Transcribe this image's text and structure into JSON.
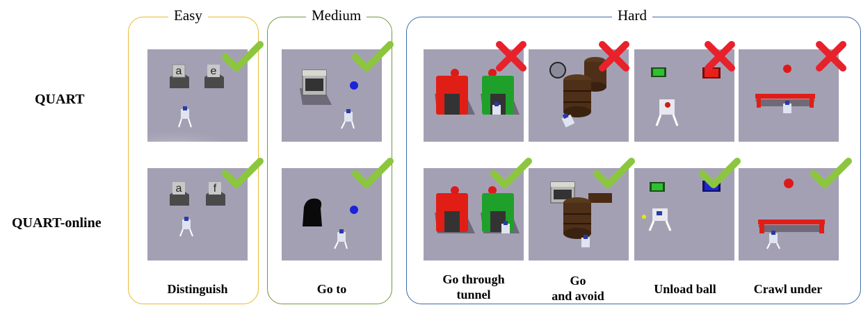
{
  "groups": {
    "easy": "Easy",
    "medium": "Medium",
    "hard": "Hard"
  },
  "rows": {
    "quart": "QUART",
    "quart_online": "QUART-online"
  },
  "tasks": {
    "distinguish": "Distinguish",
    "goto": "Go to",
    "tunnel_line1": "Go through",
    "tunnel_line2": "tunnel",
    "avoid_line1": "Go",
    "avoid_line2": "and avoid",
    "unload": "Unload ball",
    "crawl": "Crawl under"
  },
  "cube_letters": {
    "quart_left": "a",
    "quart_right": "e",
    "online_left": "a",
    "online_right": "f"
  },
  "results": {
    "quart": [
      "success",
      "success",
      "failure",
      "failure",
      "failure",
      "failure"
    ],
    "quart_online": [
      "success",
      "success",
      "success",
      "success",
      "success",
      "success"
    ]
  },
  "colors": {
    "success": "#8cc63f",
    "failure": "#e8212b",
    "floor": "#a4a0b4"
  }
}
